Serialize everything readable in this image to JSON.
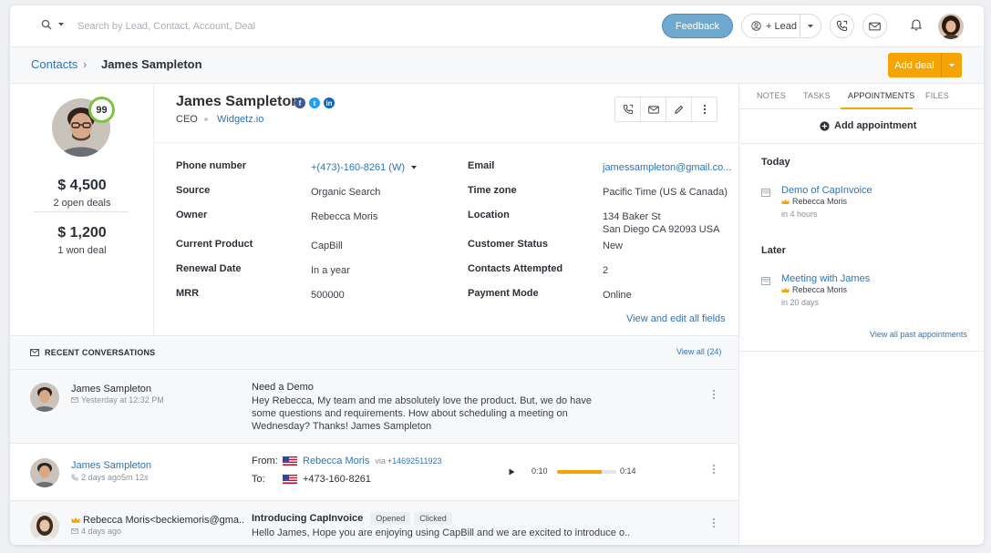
{
  "topbar": {
    "search_placeholder": "Search by Lead, Contact, Account, Deal",
    "feedback_label": "Feedback",
    "lead_label": "+ Lead"
  },
  "breadcrumb": {
    "parent": "Contacts",
    "separator": "›",
    "current": "James Sampleton",
    "add_deal_label": "Add deal"
  },
  "profile": {
    "score": "99",
    "deals_value": "$ 4,500",
    "deals_label": "2 open deals",
    "won_value": "$ 1,200",
    "won_label": "1 won deal",
    "name": "James Sampleton",
    "title": "CEO",
    "company": "Widgetz.io",
    "view_edit_label": "View and edit all fields"
  },
  "fields": [
    {
      "label": "Phone number",
      "value": "+(473)-160-8261 (W)"
    },
    {
      "label": "Source",
      "value": "Organic Search"
    },
    {
      "label": "Owner",
      "value": "Rebecca Moris"
    },
    {
      "label": "Current Product",
      "value": "CapBill"
    },
    {
      "label": "Renewal Date",
      "value": "In a year"
    },
    {
      "label": "MRR",
      "value": "500000"
    },
    {
      "label": "Email",
      "value": "jamessampleton@gmail.co..."
    },
    {
      "label": "Time zone",
      "value": "Pacific Time (US & Canada)"
    },
    {
      "label": "Location",
      "value": "134 Baker St",
      "value2": "San Diego CA 92093 USA"
    },
    {
      "label": "Customer Status",
      "value": "New"
    },
    {
      "label": "Contacts Attempted",
      "value": "2"
    },
    {
      "label": "Payment Mode",
      "value": "Online"
    }
  ],
  "right_panel": {
    "tabs": [
      "NOTES",
      "TASKS",
      "APPOINTMENTS",
      "FILES"
    ],
    "active_tab": "APPOINTMENTS",
    "add_appointment_label": "Add appointment",
    "groups": [
      {
        "heading": "Today",
        "title": "Demo of CapInvoice",
        "owner": "Rebecca Moris",
        "time": "in 4 hours"
      },
      {
        "heading": "Later",
        "title": "Meeting with James",
        "owner": "Rebecca Moris",
        "time": "in 20 days"
      }
    ],
    "view_past_label": "View all past appointments"
  },
  "conversations": {
    "header": "RECENT CONVERSATIONS",
    "view_all_label": "View all (24)",
    "items": [
      {
        "sender": "James Sampleton",
        "meta": "Yesterday at 12:32 PM",
        "subject": "Need a Demo",
        "body": "Hey Rebecca, My team and me absolutely love the product. But, we do have some questions and requirements. How about scheduling a meeting on Wednesday? Thanks! James Sampleton"
      },
      {
        "sender": "James Sampleton",
        "meta": "2 days ago5m 12s",
        "from_label": "From:",
        "from_name": "Rebecca Moris",
        "via_label": "via",
        "via_number": "+14692511923",
        "to_label": "To:",
        "to_number": "+473-160-8261",
        "elapsed": "0:10",
        "duration": "0:14",
        "progress": 0.75
      },
      {
        "sender": "Rebecca Moris<beckiemoris@gma..",
        "meta": "4 days ago",
        "subject": "Introducing CapInvoice",
        "tags": [
          "Opened",
          "Clicked"
        ],
        "body": "Hello James, Hope you are enjoying using CapBill and we are excited to introduce o.."
      }
    ]
  },
  "colors": {
    "accent": "#f5a406",
    "link": "#2e74b5",
    "feedback": "#6fa9cf",
    "score_ring": "#7ec245"
  }
}
